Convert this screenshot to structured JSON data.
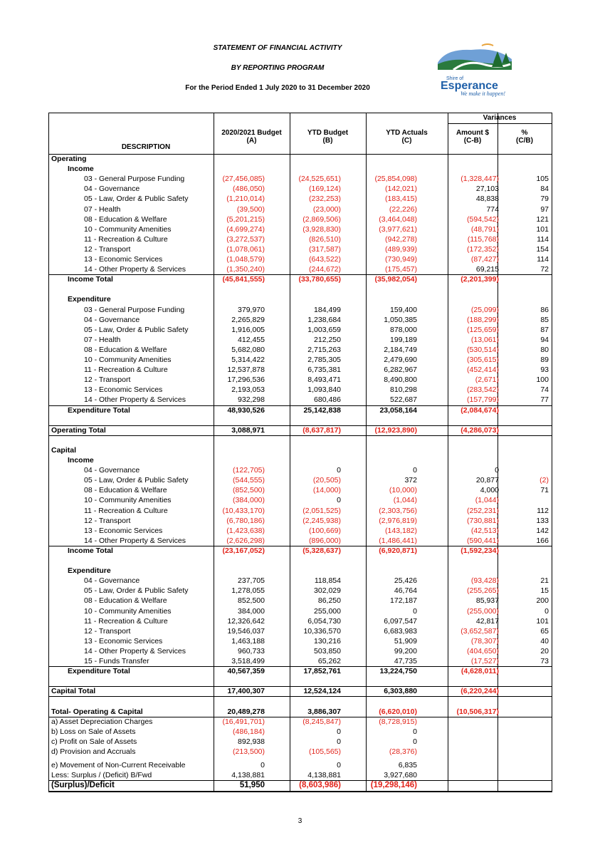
{
  "header": {
    "title": "STATEMENT OF FINANCIAL ACTIVITY",
    "subtitle": "BY REPORTING PROGRAM",
    "period": "For the Period Ended 1 July 2020 to 31 December 2020"
  },
  "logo": {
    "line1": "Shire of",
    "line2": "Esperance",
    "tagline": "We make it happen!"
  },
  "columns": {
    "variances": "Variances",
    "description": "DESCRIPTION",
    "budget": "2020/2021 Budget",
    "budget_sub": "(A)",
    "ytd_budget": "YTD Budget",
    "ytd_budget_sub": "(B)",
    "ytd_actuals": "YTD Actuals",
    "ytd_actuals_sub": "(C)",
    "amount": "Amount $",
    "amount_sub": "(C-B)",
    "pct": "%",
    "pct_sub": "(C/B)"
  },
  "rows": [
    {
      "label": "Operating",
      "level": 0,
      "bold": true
    },
    {
      "label": "Income",
      "level": 1,
      "bold": true
    },
    {
      "label": "03 - General Purpose Funding",
      "level": 2,
      "vals": [
        "(27,456,085)",
        "(24,525,651)",
        "(25,854,098)",
        "(1,328,447)",
        "105"
      ]
    },
    {
      "label": "04 - Governance",
      "level": 2,
      "vals": [
        "(486,050)",
        "(169,124)",
        "(142,021)",
        "27,103",
        "84"
      ]
    },
    {
      "label": "05 - Law, Order & Public Safety",
      "level": 2,
      "vals": [
        "(1,210,014)",
        "(232,253)",
        "(183,415)",
        "48,838",
        "79"
      ]
    },
    {
      "label": "07 - Health",
      "level": 2,
      "vals": [
        "(39,500)",
        "(23,000)",
        "(22,226)",
        "774",
        "97"
      ]
    },
    {
      "label": "08 - Education & Welfare",
      "level": 2,
      "vals": [
        "(5,201,215)",
        "(2,869,506)",
        "(3,464,048)",
        "(594,542)",
        "121"
      ]
    },
    {
      "label": "10 - Community Amenities",
      "level": 2,
      "vals": [
        "(4,699,274)",
        "(3,928,830)",
        "(3,977,621)",
        "(48,791)",
        "101"
      ]
    },
    {
      "label": "11 - Recreation & Culture",
      "level": 2,
      "vals": [
        "(3,272,537)",
        "(826,510)",
        "(942,278)",
        "(115,768)",
        "114"
      ]
    },
    {
      "label": "12 - Transport",
      "level": 2,
      "vals": [
        "(1,078,061)",
        "(317,587)",
        "(489,939)",
        "(172,352)",
        "154"
      ]
    },
    {
      "label": "13 - Economic Services",
      "level": 2,
      "vals": [
        "(1,048,579)",
        "(643,522)",
        "(730,949)",
        "(87,427)",
        "114"
      ]
    },
    {
      "label": "14 - Other Property & Services",
      "level": 2,
      "vals": [
        "(1,350,240)",
        "(244,672)",
        "(175,457)",
        "69,215",
        "72"
      ]
    },
    {
      "label": "Income Total",
      "level": 1,
      "bold": true,
      "line": true,
      "vals": [
        "(45,841,555)",
        "(33,780,655)",
        "(35,982,054)",
        "(2,201,399)",
        ""
      ]
    },
    {
      "label": "",
      "level": 0
    },
    {
      "label": "Expenditure",
      "level": 1,
      "bold": true
    },
    {
      "label": "03 - General Purpose Funding",
      "level": 2,
      "vals": [
        "379,970",
        "184,499",
        "159,400",
        "(25,099)",
        "86"
      ]
    },
    {
      "label": "04 - Governance",
      "level": 2,
      "vals": [
        "2,265,829",
        "1,238,684",
        "1,050,385",
        "(188,299)",
        "85"
      ]
    },
    {
      "label": "05 - Law, Order & Public Safety",
      "level": 2,
      "vals": [
        "1,916,005",
        "1,003,659",
        "878,000",
        "(125,659)",
        "87"
      ]
    },
    {
      "label": "07 - Health",
      "level": 2,
      "vals": [
        "412,455",
        "212,250",
        "199,189",
        "(13,061)",
        "94"
      ]
    },
    {
      "label": "08 - Education & Welfare",
      "level": 2,
      "vals": [
        "5,682,080",
        "2,715,263",
        "2,184,749",
        "(530,514)",
        "80"
      ]
    },
    {
      "label": "10 - Community Amenities",
      "level": 2,
      "vals": [
        "5,314,422",
        "2,785,305",
        "2,479,690",
        "(305,615)",
        "89"
      ]
    },
    {
      "label": "11 - Recreation & Culture",
      "level": 2,
      "vals": [
        "12,537,878",
        "6,735,381",
        "6,282,967",
        "(452,414)",
        "93"
      ]
    },
    {
      "label": "12 - Transport",
      "level": 2,
      "vals": [
        "17,296,536",
        "8,493,471",
        "8,490,800",
        "(2,671)",
        "100"
      ]
    },
    {
      "label": "13 - Economic Services",
      "level": 2,
      "vals": [
        "2,193,053",
        "1,093,840",
        "810,298",
        "(283,542)",
        "74"
      ]
    },
    {
      "label": "14 - Other Property & Services",
      "level": 2,
      "vals": [
        "932,298",
        "680,486",
        "522,687",
        "(157,799)",
        "77"
      ]
    },
    {
      "label": "Expenditure Total",
      "level": 1,
      "bold": true,
      "line": true,
      "vals": [
        "48,930,526",
        "25,142,838",
        "23,058,164",
        "(2,084,674)",
        ""
      ]
    },
    {
      "label": "",
      "level": 0
    },
    {
      "label": "Operating Total",
      "level": 0,
      "bold": true,
      "line": true,
      "lineBelow": true,
      "vals": [
        "3,088,971",
        "(8,637,817)",
        "(12,923,890)",
        "(4,286,073)",
        ""
      ]
    },
    {
      "label": "",
      "level": 0
    },
    {
      "label": "Capital",
      "level": 0,
      "bold": true
    },
    {
      "label": "Income",
      "level": 1,
      "bold": true
    },
    {
      "label": "04 - Governance",
      "level": 2,
      "vals": [
        "(122,705)",
        "0",
        "0",
        "0",
        ""
      ]
    },
    {
      "label": "05 - Law, Order & Public Safety",
      "level": 2,
      "vals": [
        "(544,555)",
        "(20,505)",
        "372",
        "20,877",
        "(2)"
      ]
    },
    {
      "label": "08 - Education & Welfare",
      "level": 2,
      "vals": [
        "(852,500)",
        "(14,000)",
        "(10,000)",
        "4,000",
        "71"
      ]
    },
    {
      "label": "10 - Community Amenities",
      "level": 2,
      "vals": [
        "(384,000)",
        "0",
        "(1,044)",
        "(1,044)",
        ""
      ]
    },
    {
      "label": "11 - Recreation & Culture",
      "level": 2,
      "vals": [
        "(10,433,170)",
        "(2,051,525)",
        "(2,303,756)",
        "(252,231)",
        "112"
      ]
    },
    {
      "label": "12 - Transport",
      "level": 2,
      "vals": [
        "(6,780,186)",
        "(2,245,938)",
        "(2,976,819)",
        "(730,881)",
        "133"
      ]
    },
    {
      "label": "13 - Economic Services",
      "level": 2,
      "vals": [
        "(1,423,638)",
        "(100,669)",
        "(143,182)",
        "(42,513)",
        "142"
      ]
    },
    {
      "label": "14 - Other Property & Services",
      "level": 2,
      "vals": [
        "(2,626,298)",
        "(896,000)",
        "(1,486,441)",
        "(590,441)",
        "166"
      ]
    },
    {
      "label": "Income Total",
      "level": 1,
      "bold": true,
      "line": true,
      "vals": [
        "(23,167,052)",
        "(5,328,637)",
        "(6,920,871)",
        "(1,592,234)",
        ""
      ]
    },
    {
      "label": "",
      "level": 0
    },
    {
      "label": "Expenditure",
      "level": 1,
      "bold": true
    },
    {
      "label": "04 - Governance",
      "level": 2,
      "vals": [
        "237,705",
        "118,854",
        "25,426",
        "(93,428)",
        "21"
      ]
    },
    {
      "label": "05 - Law, Order & Public Safety",
      "level": 2,
      "vals": [
        "1,278,055",
        "302,029",
        "46,764",
        "(255,265)",
        "15"
      ]
    },
    {
      "label": "08 - Education & Welfare",
      "level": 2,
      "vals": [
        "852,500",
        "86,250",
        "172,187",
        "85,937",
        "200"
      ]
    },
    {
      "label": "10 - Community Amenities",
      "level": 2,
      "vals": [
        "384,000",
        "255,000",
        "0",
        "(255,000)",
        "0"
      ]
    },
    {
      "label": "11 - Recreation & Culture",
      "level": 2,
      "vals": [
        "12,326,642",
        "6,054,730",
        "6,097,547",
        "42,817",
        "101"
      ]
    },
    {
      "label": "12 - Transport",
      "level": 2,
      "vals": [
        "19,546,037",
        "10,336,570",
        "6,683,983",
        "(3,652,587)",
        "65"
      ]
    },
    {
      "label": "13 - Economic Services",
      "level": 2,
      "vals": [
        "1,463,188",
        "130,216",
        "51,909",
        "(78,307)",
        "40"
      ]
    },
    {
      "label": "14 - Other Property & Services",
      "level": 2,
      "vals": [
        "960,733",
        "503,850",
        "99,200",
        "(404,650)",
        "20"
      ]
    },
    {
      "label": "15 - Funds Transfer",
      "level": 2,
      "vals": [
        "3,518,499",
        "65,262",
        "47,735",
        "(17,527)",
        "73"
      ]
    },
    {
      "label": "Expenditure Total",
      "level": 1,
      "bold": true,
      "line": true,
      "vals": [
        "40,567,359",
        "17,852,761",
        "13,224,750",
        "(4,628,011)",
        ""
      ]
    },
    {
      "label": "",
      "level": 0
    },
    {
      "label": "Capital Total",
      "level": 0,
      "bold": true,
      "line": true,
      "lineBelow": true,
      "vals": [
        "17,400,307",
        "12,524,124",
        "6,303,880",
        "(6,220,244)",
        ""
      ]
    },
    {
      "label": "",
      "level": 0
    },
    {
      "label": "Total- Operating & Capital",
      "level": 0,
      "bold": true,
      "vals": [
        "20,489,278",
        "3,886,307",
        "(6,620,010)",
        "(10,506,317)",
        ""
      ]
    },
    {
      "label": "a) Asset Depreciation Charges",
      "level": 0,
      "line": true,
      "vals": [
        "(16,491,701)",
        "(8,245,847)",
        "(8,728,915)",
        "",
        ""
      ]
    },
    {
      "label": "b) Loss on Sale of Assets",
      "level": 0,
      "vals": [
        "(486,184)",
        "0",
        "0",
        "",
        ""
      ]
    },
    {
      "label": "c) Profit on Sale of Assets",
      "level": 0,
      "vals": [
        "892,938",
        "0",
        "0",
        "",
        ""
      ]
    },
    {
      "label": "d) Provision and Accruals",
      "level": 0,
      "vals": [
        "(213,500)",
        "(105,565)",
        "(28,376)",
        "",
        ""
      ]
    },
    {
      "label": "",
      "level": 0,
      "small": true
    },
    {
      "label": "e) Movement of Non-Current Receivable",
      "level": 0,
      "vals": [
        "0",
        "0",
        "6,835",
        "",
        ""
      ]
    },
    {
      "label": "Less: Surplus / (Deficit) B/Fwd",
      "level": 0,
      "vals": [
        "4,138,881",
        "4,138,881",
        "3,927,680",
        "",
        ""
      ]
    },
    {
      "label": "(Surplus)/Deficit",
      "level": 0,
      "bold": true,
      "line": true,
      "big": true,
      "vals": [
        "51,950",
        "(8,603,986)",
        "(19,298,146)",
        "",
        ""
      ]
    }
  ],
  "page_number": "3",
  "colors": {
    "negative": "#e2231a",
    "logo_blue": "#1e5fa8",
    "logo_green": "#2e8b3a"
  }
}
